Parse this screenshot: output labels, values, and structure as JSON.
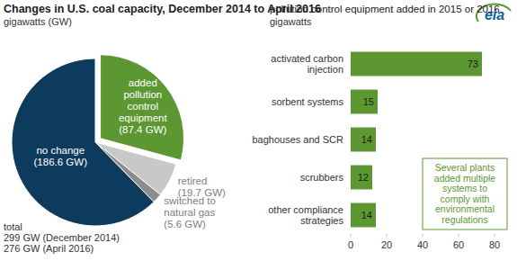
{
  "chart_data": [
    {
      "type": "pie",
      "title": "Changes in U.S. coal capacity, December 2014 to April 2016",
      "subtitle": "gigawatts (GW)",
      "source": "eia",
      "categories": [
        "added pollution control equipment",
        "retired",
        "switched to natural gas",
        "no change"
      ],
      "values": [
        87.4,
        19.7,
        5.6,
        186.6
      ],
      "value_labels": [
        "(87.4 GW)",
        "(19.7 GW)",
        "(5.6 GW)",
        "(186.6 GW)"
      ],
      "colors": [
        "#5d9732",
        "#c8c8c8",
        "#8c8c8c",
        "#0d3b5e"
      ],
      "data_labels": true,
      "annotations": [
        "total",
        "299 GW (December 2014)",
        "276 GW (April 2016)"
      ]
    },
    {
      "type": "bar",
      "orientation": "horizontal",
      "title": "pollution control equipment added in 2015 or 2016",
      "subtitle": "gigawatts",
      "categories": [
        "activated carbon injection",
        "sorbent systems",
        "baghouses and SCR",
        "scrubbers",
        "other compliance strategies"
      ],
      "values": [
        73,
        15,
        14,
        12,
        14
      ],
      "color": "#5d9732",
      "xlim": [
        0,
        80
      ],
      "xticks": [
        0,
        20,
        40,
        60,
        80
      ],
      "grid": false,
      "data_labels": true,
      "annotations": [
        "Several plants added multiple systems to comply with environmental regulations"
      ]
    }
  ]
}
